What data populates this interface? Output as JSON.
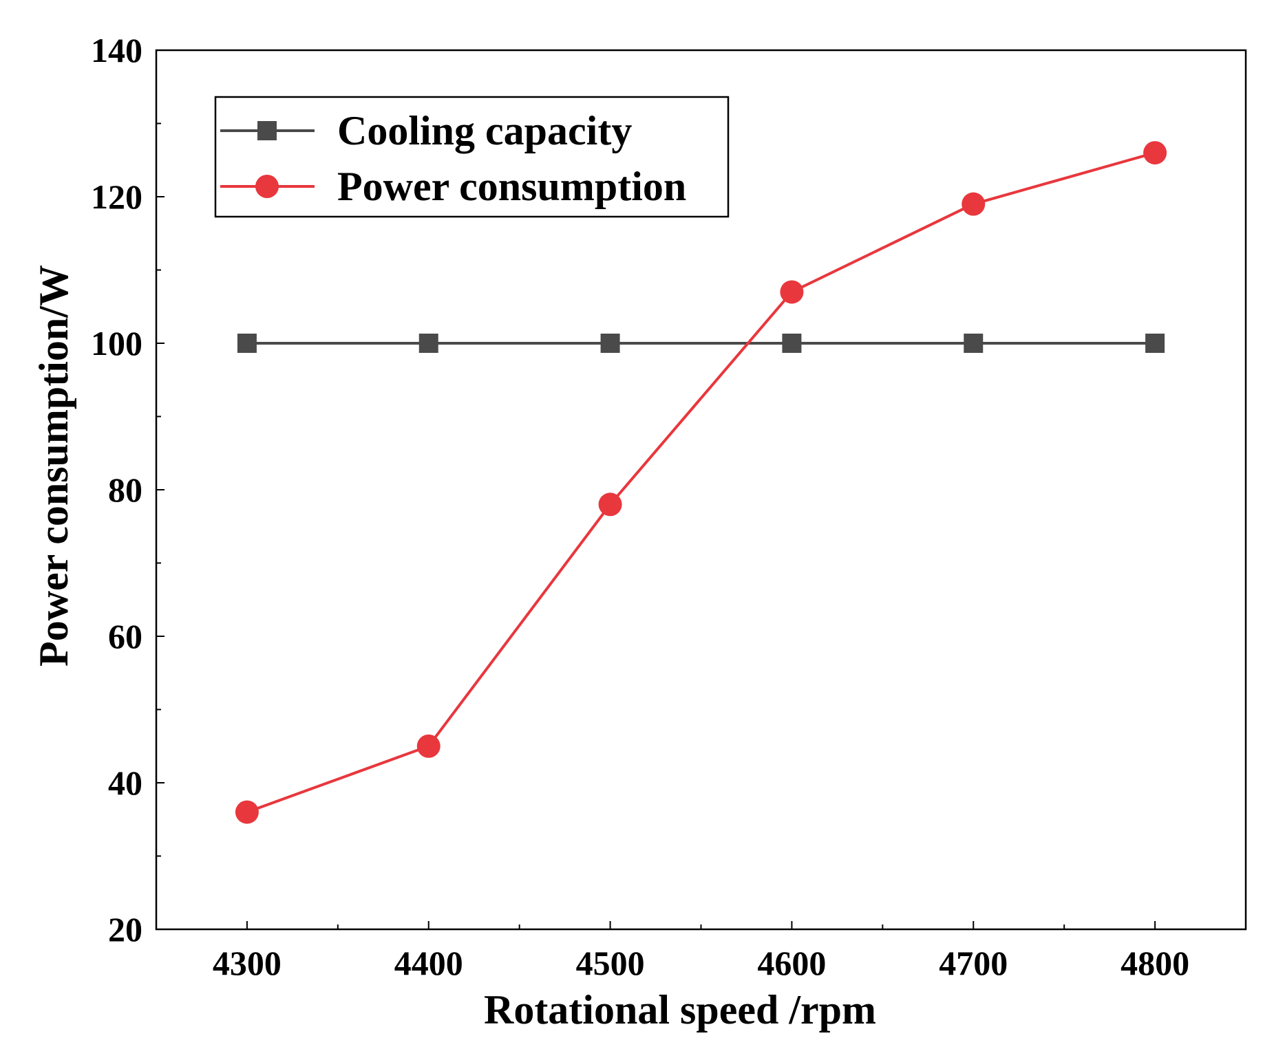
{
  "chart_data": {
    "type": "line",
    "title": "",
    "xlabel": "Rotational speed /rpm",
    "ylabel": "Power consumption/W",
    "x": [
      4300,
      4400,
      4500,
      4600,
      4700,
      4800
    ],
    "xlim": [
      4250,
      4850
    ],
    "ylim": [
      20,
      140
    ],
    "xticks": [
      4300,
      4400,
      4500,
      4600,
      4700,
      4800
    ],
    "xtick_labels": [
      "4300",
      "4400",
      "4500",
      "4600",
      "4700",
      "4800"
    ],
    "yticks": [
      20,
      40,
      60,
      80,
      100,
      120,
      140
    ],
    "ytick_labels": [
      "20",
      "40",
      "60",
      "80",
      "100",
      "120",
      "140"
    ],
    "grid": false,
    "legend_position": "top-left",
    "series": [
      {
        "name": "Cooling capacity",
        "marker": "square",
        "color": "#4a4a4a",
        "values": [
          100,
          100,
          100,
          100,
          100,
          100
        ]
      },
      {
        "name": "Power consumption",
        "marker": "circle",
        "color": "#e8373d",
        "values": [
          36,
          45,
          78,
          107,
          119,
          126
        ]
      }
    ]
  }
}
